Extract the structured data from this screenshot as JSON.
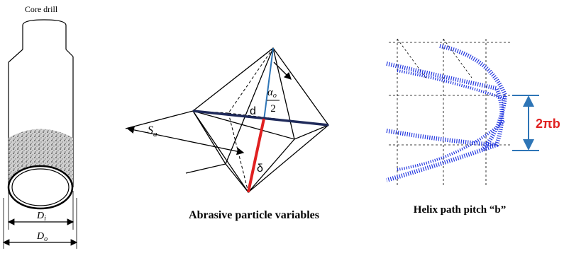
{
  "core_drill": {
    "label": "Core drill",
    "inner_diameter": {
      "symbol": "D",
      "subscript": "i"
    },
    "outer_diameter": {
      "symbol": "D",
      "subscript": "o"
    }
  },
  "abrasive_particle": {
    "spacing": {
      "symbol": "S",
      "subscript": "a"
    },
    "size": "d",
    "half_angle": {
      "symbol": "α",
      "subscript": "o",
      "denominator": "2"
    },
    "depth": "δ",
    "caption": "Abrasive particle variables"
  },
  "helix_path": {
    "pitch_label": "2πb",
    "caption": "Helix path pitch “b”"
  }
}
